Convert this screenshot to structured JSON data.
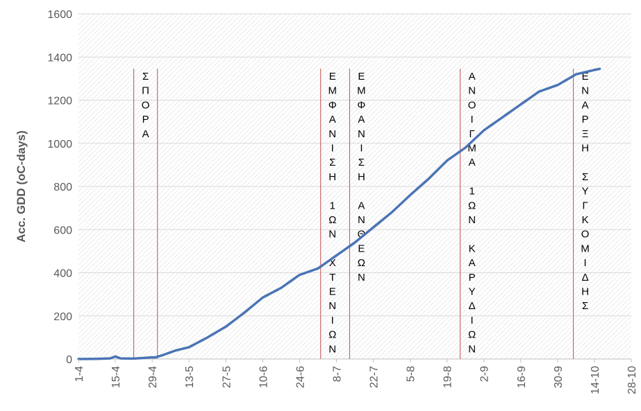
{
  "chart_data": {
    "type": "line",
    "title": "",
    "xlabel": "",
    "ylabel": "Acc. GDD (oC-days)",
    "ylim": [
      0,
      1600
    ],
    "yticks": [
      "0",
      "200",
      "400",
      "600",
      "800",
      "1000",
      "1200",
      "1400",
      "1600"
    ],
    "xticks": [
      "1-4",
      "15-4",
      "29-4",
      "13-5",
      "27-5",
      "10-6",
      "24-6",
      "8-7",
      "22-7",
      "5-8",
      "19-8",
      "2-9",
      "16-9",
      "30-9",
      "14-10",
      "28-10"
    ],
    "grid": "hatched background, horizontal gridlines",
    "legend": "none",
    "series": [
      {
        "color": "#4a74b5",
        "x": [
          "1-4",
          "8-4",
          "13-4",
          "15-4",
          "17-4",
          "22-4",
          "27-4",
          "29-4",
          "30-4",
          "3-5",
          "8-5",
          "13-5",
          "20-5",
          "27-5",
          "3-6",
          "10-6",
          "17-6",
          "24-6",
          "1-7",
          "8-7",
          "15-7",
          "22-7",
          "29-7",
          "5-8",
          "12-8",
          "19-8",
          "26-8",
          "2-9",
          "9-9",
          "16-9",
          "23-9",
          "30-9",
          "7-10",
          "14-10",
          "16-10"
        ],
        "y": [
          0,
          1,
          3,
          12,
          3,
          2,
          6,
          8,
          7,
          18,
          40,
          55,
          100,
          150,
          215,
          285,
          330,
          390,
          420,
          480,
          540,
          610,
          680,
          760,
          835,
          920,
          980,
          1060,
          1120,
          1180,
          1240,
          1270,
          1320,
          1340,
          1345
        ]
      }
    ],
    "annotations": [
      {
        "date": "22-4",
        "label": "ΣΠΟΡΑ"
      },
      {
        "date": "1-5",
        "label": ""
      },
      {
        "date": "2-7",
        "label": "ΕΜΦΑΝΙΣΗ 1ΩΝ ΧΤΕΝΙΩΝ"
      },
      {
        "date": "13-7",
        "label": "ΕΜΦΑΝΙΣΗ ΑΝΘΕΩΝ"
      },
      {
        "date": "24-8",
        "label": "ΑΝΟΙΓΜΑ 1ΩΝ ΚΑΡΥΔΙΩΝ"
      },
      {
        "date": "6-10",
        "label": "ΕΝΑΡΞΗ ΣΥΓΚΟΜΙΔΗΣ"
      }
    ],
    "colors": {
      "line": "#4a74b5",
      "marker_lines": "#c0504d",
      "grid": "#d9d9d9",
      "hatch": "#e3e3e3"
    }
  }
}
